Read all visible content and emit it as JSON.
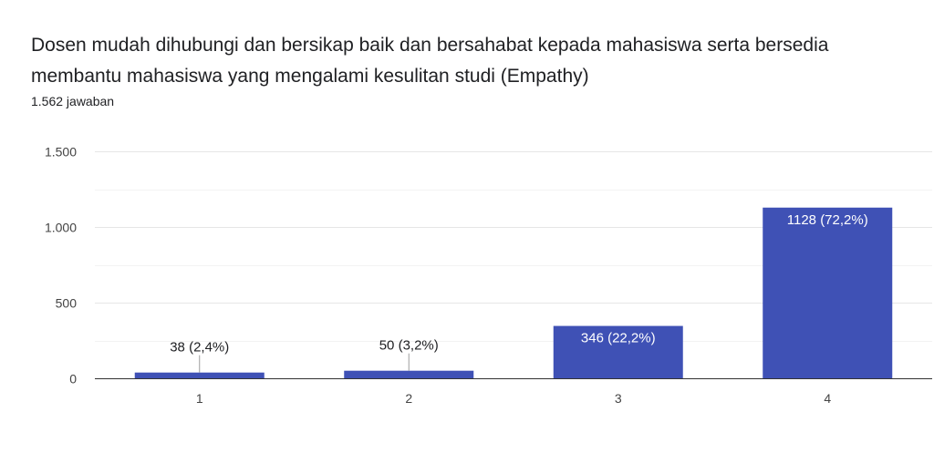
{
  "chart_data": {
    "type": "bar",
    "title": "Dosen mudah dihubungi dan bersikap baik dan bersahabat kepada mahasiswa serta bersedia membantu mahasiswa yang mengalami kesulitan studi (Empathy)",
    "subtitle": "1.562 jawaban",
    "categories": [
      "1",
      "2",
      "3",
      "4"
    ],
    "values": [
      38,
      50,
      346,
      1128
    ],
    "data_labels": [
      "38 (2,4%)",
      "50 (3,2%)",
      "346 (22,2%)",
      "1128 (72,2%)"
    ],
    "ylim": [
      0,
      1500
    ],
    "yticks": [
      0,
      500,
      1000,
      1500
    ],
    "ytick_labels": [
      "0",
      "500",
      "1.000",
      "1.500"
    ],
    "grid": true,
    "bar_color": "#3f51b5",
    "xlabel": "",
    "ylabel": ""
  }
}
